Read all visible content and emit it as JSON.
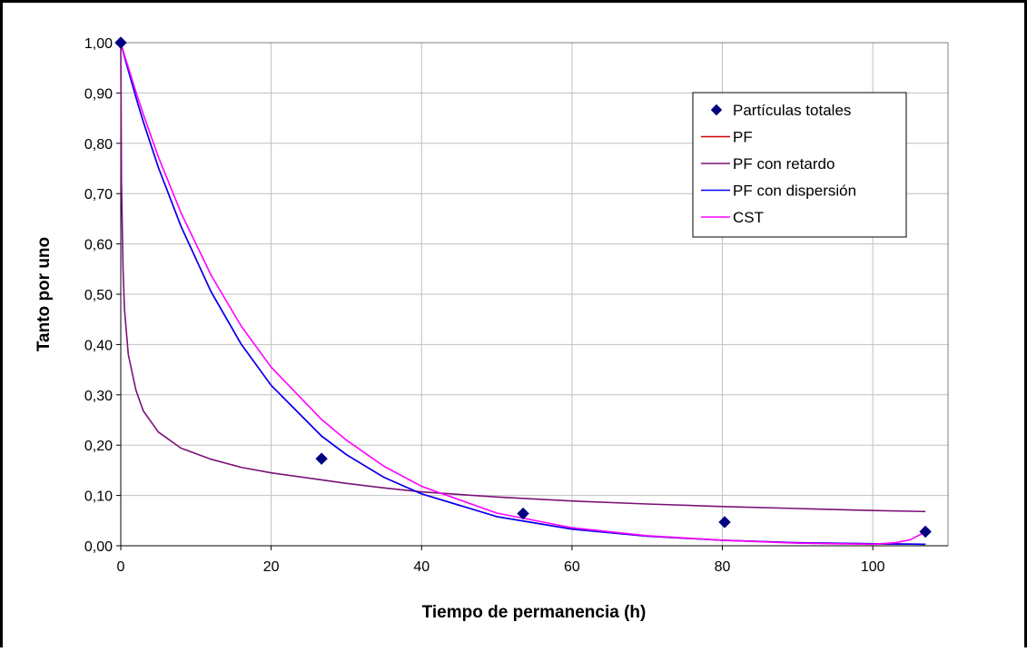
{
  "chart_data": {
    "type": "scatter",
    "xlabel": "Tiempo de permanencia (h)",
    "ylabel": "Tanto por uno",
    "xlim": [
      0,
      110
    ],
    "ylim": [
      0,
      1
    ],
    "x_ticks": [
      0,
      20,
      40,
      60,
      80,
      100
    ],
    "y_ticks": [
      0,
      0.1,
      0.2,
      0.3,
      0.4,
      0.5,
      0.6,
      0.7,
      0.8,
      0.9,
      1.0
    ],
    "x_tick_labels": [
      "0",
      "20",
      "40",
      "60",
      "80",
      "100"
    ],
    "y_tick_labels": [
      "0,00",
      "0,10",
      "0,20",
      "0,30",
      "0,40",
      "0,50",
      "0,60",
      "0,70",
      "0,80",
      "0,90",
      "1,00"
    ],
    "grid": true,
    "legend_position": "top-right",
    "series": [
      {
        "name": "Partículas totales",
        "kind": "markers",
        "marker": "diamond",
        "color": "#000080",
        "x": [
          0,
          26.7,
          53.5,
          80.3,
          107
        ],
        "y": [
          1.0,
          0.173,
          0.064,
          0.047,
          0.028
        ]
      },
      {
        "name": "PF",
        "kind": "line",
        "color": "#d00000",
        "x": [
          0,
          0.5,
          1,
          2,
          3,
          5,
          8,
          12,
          16,
          20,
          26.7,
          30,
          35,
          40,
          50,
          60,
          70,
          80,
          90,
          100,
          107
        ],
        "y": [
          1.0,
          0.972,
          0.945,
          0.892,
          0.843,
          0.752,
          0.635,
          0.505,
          0.401,
          0.319,
          0.218,
          0.181,
          0.136,
          0.103,
          0.058,
          0.033,
          0.019,
          0.011,
          0.006,
          0.004,
          0.003
        ]
      },
      {
        "name": "PF con retardo",
        "kind": "line",
        "color": "#7b1178",
        "x": [
          0,
          0.1,
          0.3,
          0.5,
          1,
          2,
          3,
          5,
          8,
          12,
          16,
          20,
          26.7,
          30,
          35,
          40,
          50,
          60,
          70,
          80,
          90,
          100,
          107
        ],
        "y": [
          1.0,
          0.72,
          0.55,
          0.47,
          0.38,
          0.31,
          0.268,
          0.226,
          0.194,
          0.172,
          0.156,
          0.145,
          0.131,
          0.124,
          0.115,
          0.107,
          0.097,
          0.089,
          0.083,
          0.078,
          0.074,
          0.07,
          0.068
        ]
      },
      {
        "name": "PF con dispersión",
        "kind": "line",
        "color": "#0000ff",
        "x": [
          0,
          0.5,
          1,
          2,
          3,
          5,
          8,
          12,
          16,
          20,
          26.7,
          30,
          35,
          40,
          50,
          60,
          70,
          80,
          90,
          100,
          107
        ],
        "y": [
          1.0,
          0.972,
          0.945,
          0.892,
          0.843,
          0.752,
          0.635,
          0.505,
          0.401,
          0.319,
          0.218,
          0.181,
          0.136,
          0.103,
          0.058,
          0.033,
          0.019,
          0.011,
          0.006,
          0.004,
          0.003
        ]
      },
      {
        "name": "CST",
        "kind": "line",
        "color": "#ff00ff",
        "x": [
          0,
          0.5,
          1,
          2,
          3,
          5,
          8,
          12,
          16,
          20,
          26.7,
          30,
          35,
          40,
          50,
          60,
          70,
          80,
          90,
          95,
          100,
          103,
          105,
          107
        ],
        "y": [
          1.0,
          0.975,
          0.951,
          0.903,
          0.858,
          0.773,
          0.662,
          0.538,
          0.437,
          0.355,
          0.251,
          0.21,
          0.158,
          0.118,
          0.065,
          0.036,
          0.02,
          0.011,
          0.005,
          0.004,
          0.003,
          0.006,
          0.012,
          0.028
        ]
      }
    ]
  }
}
